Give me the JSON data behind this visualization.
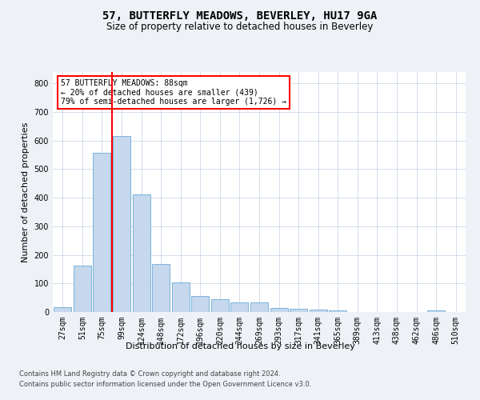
{
  "title": "57, BUTTERFLY MEADOWS, BEVERLEY, HU17 9GA",
  "subtitle": "Size of property relative to detached houses in Beverley",
  "xlabel": "Distribution of detached houses by size in Beverley",
  "ylabel": "Number of detached properties",
  "categories": [
    "27sqm",
    "51sqm",
    "75sqm",
    "99sqm",
    "124sqm",
    "148sqm",
    "172sqm",
    "196sqm",
    "220sqm",
    "244sqm",
    "269sqm",
    "293sqm",
    "317sqm",
    "341sqm",
    "365sqm",
    "389sqm",
    "413sqm",
    "438sqm",
    "462sqm",
    "486sqm",
    "510sqm"
  ],
  "values": [
    18,
    162,
    557,
    615,
    413,
    168,
    103,
    57,
    45,
    34,
    34,
    15,
    11,
    8,
    5,
    0,
    0,
    0,
    0,
    7,
    0
  ],
  "bar_color": "#c5d8ee",
  "bar_edge_color": "#6aaad4",
  "vline_color": "red",
  "annotation_text": "57 BUTTERFLY MEADOWS: 88sqm\n← 20% of detached houses are smaller (439)\n79% of semi-detached houses are larger (1,726) →",
  "annotation_box_color": "white",
  "annotation_box_edge_color": "red",
  "ylim": [
    0,
    840
  ],
  "yticks": [
    0,
    100,
    200,
    300,
    400,
    500,
    600,
    700,
    800
  ],
  "footer_line1": "Contains HM Land Registry data © Crown copyright and database right 2024.",
  "footer_line2": "Contains public sector information licensed under the Open Government Licence v3.0.",
  "bg_color": "#eef2f7",
  "plot_bg_color": "#ffffff",
  "title_fontsize": 10,
  "subtitle_fontsize": 8.5,
  "axis_label_fontsize": 8,
  "tick_fontsize": 7,
  "footer_fontsize": 6
}
